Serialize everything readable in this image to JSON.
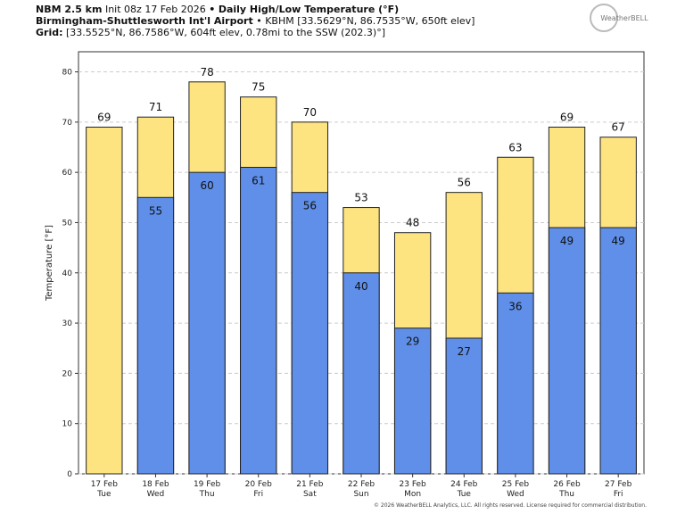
{
  "chart_data": {
    "type": "overlap-bar",
    "title": {
      "model": "NBM 2.5 km",
      "init": "Init 08z 17 Feb 2026",
      "bullet": "•",
      "product": "Daily High/Low Temperature (°F)"
    },
    "station": {
      "name": "Birmingham-Shuttlesworth Int'l Airport",
      "details": "• KBHM [33.5629°N, 86.7535°W, 650ft elev]"
    },
    "grid_info": {
      "label": "Grid:",
      "details": "[33.5525°N, 86.7586°W, 604ft elev, 0.78mi to the SSW (202.3)°]"
    },
    "logo": "WeatherBELL",
    "footer": "© 2026 WeatherBELL Analytics, LLC. All rights reserved. License required for commercial distribution.",
    "y_label": "Temperature [°F]",
    "categories": [
      [
        "17 Feb",
        "Tue"
      ],
      [
        "18 Feb",
        "Wed"
      ],
      [
        "19 Feb",
        "Thu"
      ],
      [
        "20 Feb",
        "Fri"
      ],
      [
        "21 Feb",
        "Sat"
      ],
      [
        "22 Feb",
        "Sun"
      ],
      [
        "23 Feb",
        "Mon"
      ],
      [
        "24 Feb",
        "Tue"
      ],
      [
        "25 Feb",
        "Wed"
      ],
      [
        "26 Feb",
        "Thu"
      ],
      [
        "27 Feb",
        "Fri"
      ]
    ],
    "series": [
      {
        "color": "#fde480",
        "values": [
          69,
          71,
          78,
          75,
          70,
          53,
          48,
          56,
          63,
          69,
          67
        ]
      },
      {
        "color": "#5f8fe8",
        "values": [
          null,
          55,
          60,
          61,
          56,
          40,
          29,
          27,
          36,
          49,
          49
        ]
      }
    ],
    "ylim": [
      0,
      84
    ],
    "yticks": [
      0,
      10,
      20,
      30,
      40,
      50,
      60,
      70,
      80
    ],
    "grid": true
  }
}
